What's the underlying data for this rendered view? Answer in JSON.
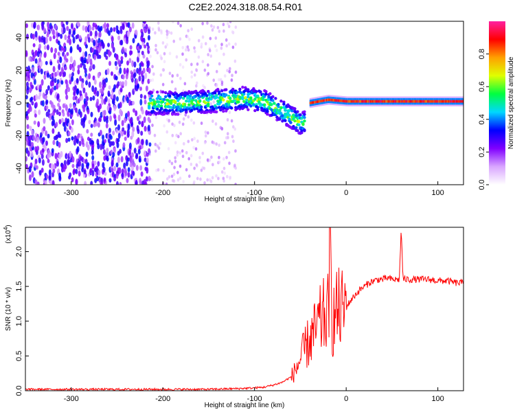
{
  "title": "C2E2.2024.318.08.54.R01",
  "chart_data": [
    {
      "type": "heatmap",
      "title": "",
      "xlabel": "Height of straight line (km)",
      "ylabel": "Frequency (Hz)",
      "xlim": [
        -350,
        128
      ],
      "ylim": [
        -50,
        50
      ],
      "xticks": [
        -300,
        -200,
        -100,
        0,
        100
      ],
      "yticks": [
        -40,
        -20,
        0,
        20,
        40
      ],
      "colorbar": {
        "label": "Normalized spectral amplitude",
        "range": [
          0,
          1
        ],
        "ticks": [
          "0.0",
          "0.2",
          "0.4",
          "0.6",
          "0.8"
        ],
        "colors": [
          "#ffffff",
          "#d9a6ff",
          "#8000ff",
          "#0000ff",
          "#00d8ff",
          "#00ff40",
          "#e0ff00",
          "#ffa000",
          "#ff0000",
          "#ff20a0"
        ]
      },
      "structure": [
        {
          "from_km": -350,
          "to_km": -215,
          "description_level": 0.25,
          "spread_hz": 50
        },
        {
          "from_km": -215,
          "to_km": -120,
          "description_level": 0.15,
          "spread_hz": 50
        },
        {
          "from_km": -215,
          "to_km": -45,
          "center_hz": [
            [
              -215,
              0
            ],
            [
              -180,
              0
            ],
            [
              -150,
              1
            ],
            [
              -110,
              3
            ],
            [
              -90,
              1
            ],
            [
              -70,
              -5
            ],
            [
              -50,
              -12
            ]
          ],
          "peak_level": 0.45
        },
        {
          "from_km": -40,
          "to_km": 128,
          "center_hz": [
            [
              -40,
              0
            ],
            [
              -20,
              2
            ],
            [
              0,
              1
            ],
            [
              60,
              1
            ],
            [
              128,
              1
            ]
          ],
          "peak_level": 0.95
        }
      ]
    },
    {
      "type": "line",
      "title": "",
      "xlabel": "Height of straight line (km)",
      "ylabel": "SNR (10 * v/v)",
      "yscale_label": "(x10",
      "yscale_exponent": "4",
      "yscale_suffix": ")",
      "xlim": [
        -350,
        128
      ],
      "ylim": [
        0,
        2.35
      ],
      "xticks": [
        -300,
        -200,
        -100,
        0,
        100
      ],
      "yticks": [
        "0.0",
        "0.5",
        "1.0",
        "1.5",
        "2.0"
      ],
      "line_color": "#ff0000",
      "series": [
        {
          "x": [
            -350,
            -300,
            -250,
            -200,
            -150,
            -120,
            -100,
            -90,
            -80,
            -70,
            -60,
            -55,
            -50,
            -45,
            -40,
            -35,
            -30,
            -25,
            -20,
            -18,
            -15,
            -10,
            -5,
            0,
            5,
            10,
            15,
            20,
            25,
            30,
            35,
            40,
            45,
            50,
            55,
            58,
            60,
            62,
            65,
            70,
            80,
            90,
            100,
            110,
            120,
            128
          ],
          "y": [
            0.02,
            0.02,
            0.02,
            0.02,
            0.02,
            0.03,
            0.04,
            0.05,
            0.08,
            0.12,
            0.2,
            0.3,
            0.45,
            0.6,
            0.72,
            0.82,
            0.95,
            1.05,
            1.1,
            1.95,
            1.0,
            1.15,
            1.15,
            1.2,
            1.3,
            1.38,
            1.45,
            1.5,
            1.55,
            1.58,
            1.6,
            1.6,
            1.62,
            1.6,
            1.6,
            1.6,
            2.35,
            1.6,
            1.6,
            1.6,
            1.6,
            1.6,
            1.58,
            1.58,
            1.55,
            1.55
          ]
        }
      ]
    }
  ]
}
